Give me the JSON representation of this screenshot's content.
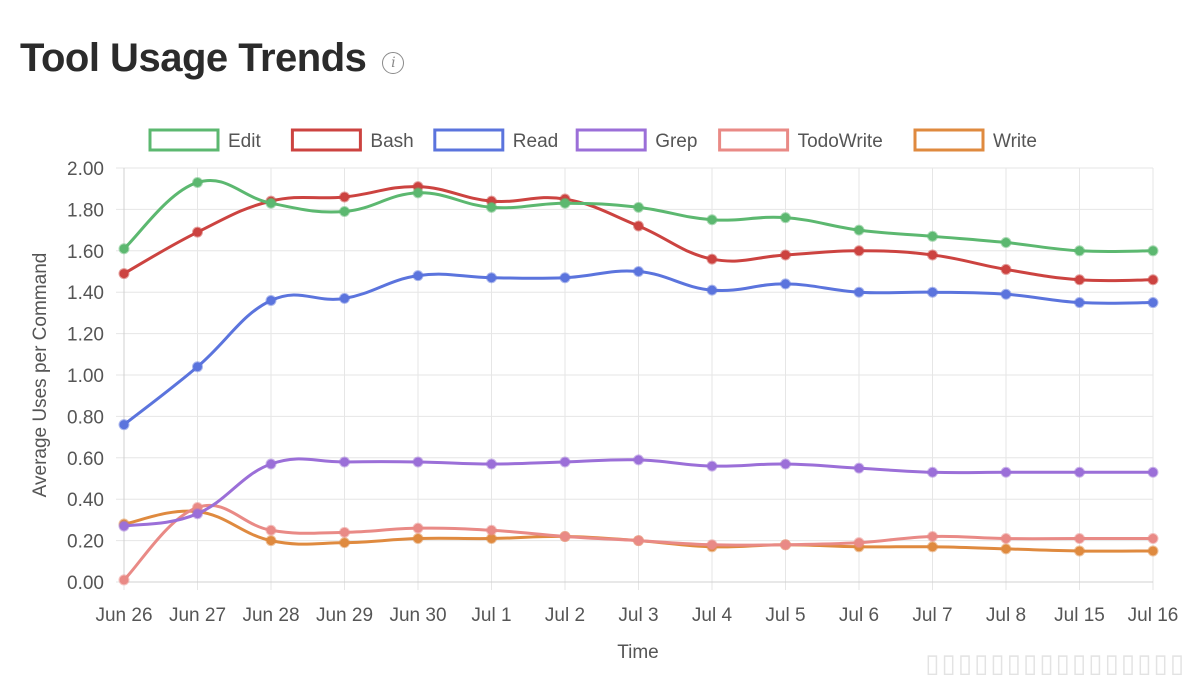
{
  "header": {
    "title": "Tool Usage Trends",
    "info_icon": "info-icon"
  },
  "chart_data": {
    "type": "line",
    "xlabel": "Time",
    "ylabel": "Average Uses per Command",
    "ylim": [
      0,
      2
    ],
    "y_ticks": [
      "0.00",
      "0.20",
      "0.40",
      "0.60",
      "0.80",
      "1.00",
      "1.20",
      "1.40",
      "1.60",
      "1.80",
      "2.00"
    ],
    "grid": true,
    "legend": "top-center",
    "categories": [
      "Jun 26",
      "Jun 27",
      "Jun 28",
      "Jun 29",
      "Jun 30",
      "Jul 1",
      "Jul 2",
      "Jul 3",
      "Jul 4",
      "Jul 5",
      "Jul 6",
      "Jul 7",
      "Jul 8",
      "Jul 15",
      "Jul 16"
    ],
    "series": [
      {
        "name": "Edit",
        "color": "#5cb870",
        "values": [
          1.61,
          1.93,
          1.83,
          1.79,
          1.88,
          1.81,
          1.83,
          1.81,
          1.75,
          1.76,
          1.7,
          1.67,
          1.64,
          1.6,
          1.6
        ]
      },
      {
        "name": "Bash",
        "color": "#cc4340",
        "values": [
          1.49,
          1.69,
          1.84,
          1.86,
          1.91,
          1.84,
          1.85,
          1.72,
          1.56,
          1.58,
          1.6,
          1.58,
          1.51,
          1.46,
          1.46
        ]
      },
      {
        "name": "Read",
        "color": "#5b74dd",
        "values": [
          0.76,
          1.04,
          1.36,
          1.37,
          1.48,
          1.47,
          1.47,
          1.5,
          1.41,
          1.44,
          1.4,
          1.4,
          1.39,
          1.35,
          1.35
        ]
      },
      {
        "name": "Grep",
        "color": "#9b6fd8",
        "values": [
          0.27,
          0.33,
          0.57,
          0.58,
          0.58,
          0.57,
          0.58,
          0.59,
          0.56,
          0.57,
          0.55,
          0.53,
          0.53,
          0.53,
          0.53
        ]
      },
      {
        "name": "TodoWrite",
        "color": "#e98a86",
        "values": [
          0.01,
          0.36,
          0.25,
          0.24,
          0.26,
          0.25,
          0.22,
          0.2,
          0.18,
          0.18,
          0.19,
          0.22,
          0.21,
          0.21,
          0.21
        ]
      },
      {
        "name": "Write",
        "color": "#df8a3f",
        "values": [
          0.28,
          0.34,
          0.2,
          0.19,
          0.21,
          0.21,
          0.22,
          0.2,
          0.17,
          0.18,
          0.17,
          0.17,
          0.16,
          0.15,
          0.15
        ]
      }
    ]
  }
}
